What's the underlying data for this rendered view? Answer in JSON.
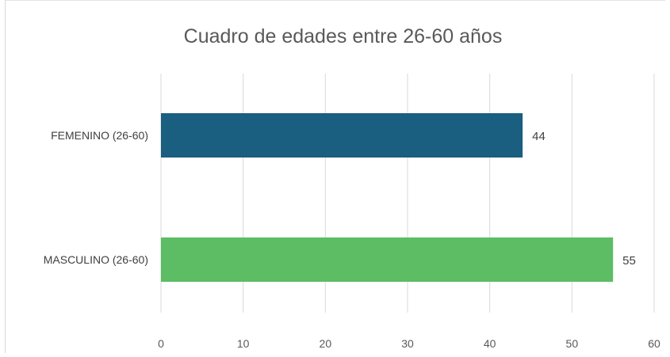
{
  "chart_data": {
    "type": "bar",
    "orientation": "horizontal",
    "title": "Cuadro de edades entre 26-60 años",
    "categories": [
      "FEMENINO (26-60)",
      "MASCULINO (26-60)"
    ],
    "values": [
      44,
      55
    ],
    "colors": [
      "#1a5e80",
      "#5cbd64"
    ],
    "xlim": [
      0,
      60
    ],
    "xticks": [
      0,
      10,
      20,
      30,
      40,
      50,
      60
    ],
    "grid": "vertical",
    "data_labels": [
      "44",
      "55"
    ],
    "legend": "none"
  }
}
